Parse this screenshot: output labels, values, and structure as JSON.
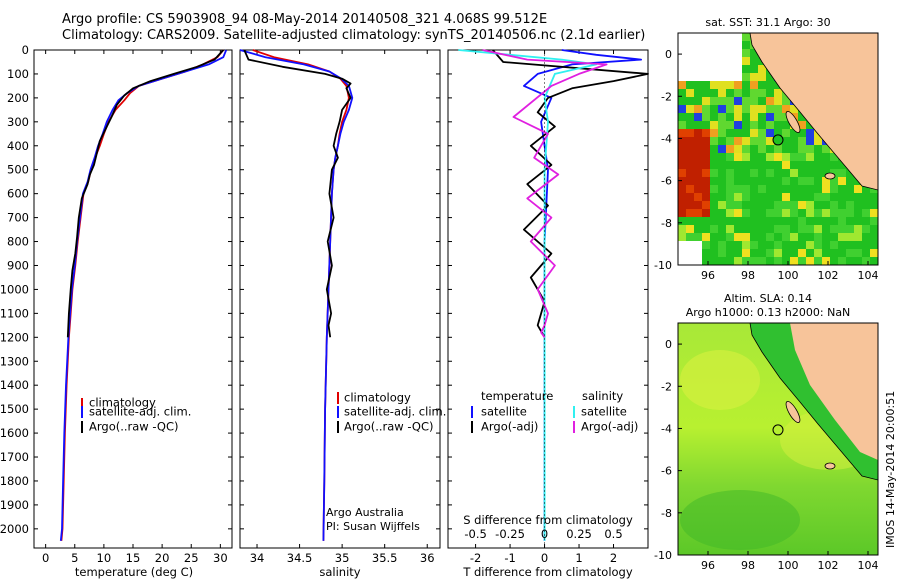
{
  "title": {
    "line1": "Argo profile: CS 5903908_94 08-May-2014 20140508_321 4.068S 99.512E",
    "line2": "Climatology: CARS2009. Satellite-adjusted climatology: synTS_20140506.nc (2.1d earlier)"
  },
  "colors": {
    "red": "#e00000",
    "blue": "#1010ff",
    "black": "#000000",
    "cyan": "#30f0f0",
    "magenta": "#e020e0",
    "land": "#f7c49a"
  },
  "chart_data": [
    {
      "type": "line",
      "name": "temperature-profile",
      "xlabel": "temperature (deg C)",
      "xlim": [
        -2,
        32
      ],
      "ylim": [
        2080,
        0
      ],
      "xticks": [
        0,
        5,
        10,
        15,
        20,
        25,
        30
      ],
      "yticks": [
        0,
        100,
        200,
        300,
        400,
        500,
        600,
        700,
        800,
        900,
        1000,
        1100,
        1200,
        1300,
        1400,
        1500,
        1600,
        1700,
        1800,
        1900,
        2000
      ],
      "legend": {
        "position": "lower-middle",
        "entries": [
          "climatology",
          "satellite-adj. clim.",
          "Argo(..raw -QC)"
        ]
      },
      "series": [
        {
          "name": "climatology",
          "color": "red",
          "x": [
            30.5,
            29.5,
            27,
            24,
            20,
            16,
            14.5,
            13.5,
            12,
            10.8,
            10,
            9.3,
            8.5,
            7.8,
            7.3,
            6.5,
            6,
            5.5,
            5.1,
            4.6,
            4.3,
            4,
            3.6,
            3.3,
            3.1,
            2.9,
            2.7
          ],
          "y": [
            0,
            30,
            60,
            90,
            120,
            150,
            180,
            210,
            250,
            300,
            350,
            400,
            450,
            500,
            550,
            600,
            700,
            800,
            900,
            1000,
            1100,
            1200,
            1400,
            1600,
            1800,
            2000,
            2050
          ]
        },
        {
          "name": "satellite-adj. clim.",
          "color": "blue",
          "x": [
            31,
            30.5,
            28,
            24,
            20,
            16,
            14,
            12.5,
            11.5,
            10.5,
            9.8,
            9,
            8.4,
            7.7,
            7.2,
            6.4,
            5.9,
            5.4,
            5,
            4.5,
            4.2,
            3.9,
            3.5,
            3.2,
            3,
            2.8,
            2.6
          ],
          "y": [
            0,
            30,
            60,
            90,
            120,
            150,
            180,
            210,
            250,
            300,
            350,
            400,
            450,
            500,
            550,
            600,
            700,
            800,
            900,
            1000,
            1100,
            1200,
            1400,
            1600,
            1800,
            2000,
            2050
          ]
        },
        {
          "name": "Argo(..raw -QC)",
          "color": "black",
          "x": [
            30.5,
            29,
            26,
            22,
            18,
            15,
            13.5,
            12.2,
            11.3,
            10.5,
            9.3,
            8.8,
            8.3,
            7.6,
            7.2,
            6.2,
            5.7,
            5.4,
            5.1,
            4.6,
            4.3,
            4,
            3.8
          ],
          "y": [
            0,
            40,
            70,
            100,
            130,
            160,
            190,
            230,
            280,
            320,
            380,
            430,
            480,
            520,
            560,
            620,
            700,
            780,
            850,
            920,
            1000,
            1100,
            1200
          ]
        }
      ]
    },
    {
      "type": "line",
      "name": "salinity-profile",
      "xlabel": "salinity",
      "xlim": [
        33.8,
        36.15
      ],
      "ylim": [
        2080,
        0
      ],
      "xticks": [
        34,
        34.5,
        35,
        35.5,
        36
      ],
      "legend": {
        "position": "lower-right",
        "entries": [
          "climatology",
          "satellite-adj. clim.",
          "Argo(..raw -QC)"
        ]
      },
      "annotation": {
        "line1": "Argo Australia",
        "line2": "PI: Susan Wijffels"
      },
      "series": [
        {
          "name": "climatology",
          "color": "red",
          "x": [
            33.95,
            34.2,
            34.6,
            34.85,
            34.98,
            35.05,
            35.08,
            35.05,
            35,
            34.97,
            34.95,
            34.92,
            34.9,
            34.88,
            34.86,
            34.84,
            34.82,
            34.8,
            34.79,
            34.78
          ],
          "y": [
            0,
            30,
            60,
            90,
            120,
            150,
            200,
            250,
            300,
            350,
            400,
            450,
            500,
            600,
            800,
            1000,
            1200,
            1500,
            1800,
            2050
          ]
        },
        {
          "name": "satellite-adj. clim.",
          "color": "blue",
          "x": [
            33.8,
            34.1,
            34.55,
            34.85,
            34.99,
            35.08,
            35.12,
            35.08,
            35.02,
            34.98,
            34.95,
            34.92,
            34.9,
            34.88,
            34.86,
            34.84,
            34.82,
            34.8,
            34.79,
            34.78
          ],
          "y": [
            0,
            30,
            60,
            90,
            120,
            150,
            200,
            250,
            300,
            350,
            400,
            450,
            500,
            600,
            800,
            1000,
            1200,
            1500,
            1800,
            2050
          ]
        },
        {
          "name": "Argo(..raw -QC)",
          "color": "black",
          "x": [
            33.85,
            33.9,
            34.3,
            34.8,
            35.0,
            35.1,
            35.05,
            35.1,
            35.0,
            34.97,
            34.93,
            34.9,
            34.95,
            34.88,
            34.85,
            34.9,
            34.83,
            34.88,
            34.82,
            34.87,
            34.84,
            34.86
          ],
          "y": [
            0,
            40,
            70,
            100,
            120,
            140,
            160,
            200,
            250,
            300,
            350,
            400,
            450,
            500,
            600,
            700,
            800,
            900,
            1000,
            1100,
            1150,
            1200
          ]
        }
      ]
    },
    {
      "type": "line",
      "name": "difference-profile",
      "xlabel": "T difference from climatology",
      "xlabel2": "S difference from climatology",
      "xlim": [
        -2.8,
        3
      ],
      "ylim": [
        2080,
        0
      ],
      "xticks": [
        -2,
        -1,
        0,
        1,
        2
      ],
      "xticks2": [
        -0.5,
        -0.25,
        0,
        0.25,
        0.5
      ],
      "legend": {
        "position": "lower-middle",
        "headers": [
          "temperature",
          "salinity"
        ],
        "entries": [
          "satellite",
          "Argo(-adj)",
          "satellite",
          "Argo(-adj)"
        ]
      },
      "series": [
        {
          "name": "temperature satellite",
          "color": "blue",
          "x": [
            0.5,
            1.5,
            2.8,
            0.8,
            -0.2,
            -0.6,
            0.2,
            -0.1,
            0.1,
            0,
            0,
            0,
            0
          ],
          "y": [
            0,
            20,
            40,
            60,
            100,
            150,
            200,
            300,
            500,
            800,
            1200,
            1600,
            2050
          ]
        },
        {
          "name": "temperature Argo(-adj)",
          "color": "black",
          "x": [
            -1.5,
            -1.2,
            3,
            2,
            0.8,
            0.1,
            -0.2,
            0.3,
            -0.4,
            0.2,
            -0.5,
            0.1,
            -0.6,
            0.2,
            -0.4,
            0,
            -0.2,
            0
          ],
          "y": [
            0,
            50,
            100,
            130,
            160,
            200,
            260,
            320,
            400,
            480,
            560,
            650,
            750,
            850,
            950,
            1050,
            1150,
            1200
          ]
        },
        {
          "name": "salinity satellite",
          "color": "cyan",
          "x": [
            -2.5,
            -1,
            0.5,
            1.5,
            0.3,
            0,
            0.1,
            0,
            0,
            0,
            0,
            0
          ],
          "y": [
            0,
            20,
            40,
            60,
            100,
            200,
            300,
            500,
            800,
            1200,
            1600,
            2050
          ]
        },
        {
          "name": "salinity Argo(-adj)",
          "color": "magenta",
          "x": [
            -1.8,
            -0.5,
            1.8,
            1,
            0.2,
            -0.9,
            0.1,
            -0.3,
            0.4,
            -0.5,
            0.2,
            -0.4,
            0.3,
            -0.2,
            0.1,
            0,
            -0.1,
            0
          ],
          "y": [
            0,
            40,
            60,
            100,
            150,
            280,
            350,
            450,
            520,
            620,
            700,
            800,
            900,
            1000,
            1100,
            1150,
            1180,
            1200
          ]
        }
      ]
    },
    {
      "type": "heatmap",
      "name": "sst-map",
      "title": "sat. SST: 31.1 Argo: 30",
      "xlim": [
        94.5,
        104.5
      ],
      "ylim": [
        -10,
        1
      ],
      "xticks": [
        96,
        98,
        100,
        102,
        104
      ],
      "yticks": [
        -10,
        -8,
        -6,
        -4,
        -2,
        0
      ],
      "argo_point": {
        "lon": 99.5,
        "lat": -4.07
      }
    },
    {
      "type": "heatmap",
      "name": "sla-map",
      "title1": "Altim. SLA: 0.14",
      "title2": "Argo h1000: 0.13 h2000: NaN",
      "xlim": [
        94.5,
        104.5
      ],
      "ylim": [
        -10,
        1
      ],
      "xticks": [
        96,
        98,
        100,
        102,
        104
      ],
      "yticks": [
        -10,
        -8,
        -6,
        -4,
        -2,
        0
      ],
      "argo_point": {
        "lon": 99.5,
        "lat": -4.07
      }
    }
  ],
  "footer": "IMOS 14-May-2014 20:00:51"
}
